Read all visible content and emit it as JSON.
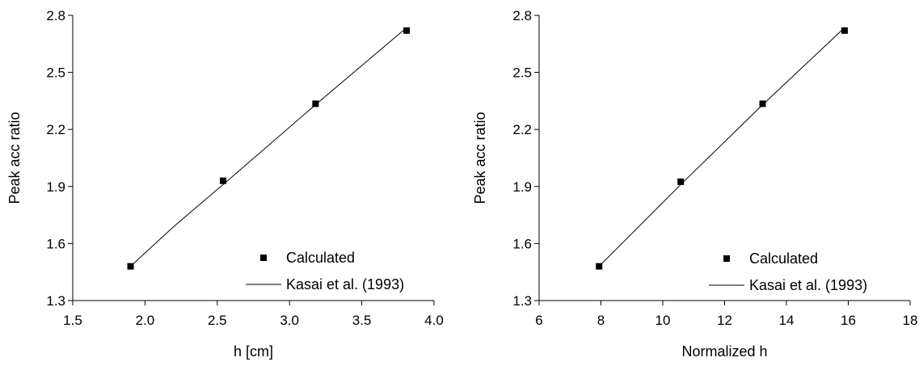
{
  "chart_data": [
    {
      "type": "scatter",
      "xlabel": "h [cm]",
      "ylabel": "Peak acc ratio",
      "xlim": [
        1.5,
        4.0
      ],
      "ylim": [
        1.3,
        2.8
      ],
      "xticks": [
        1.5,
        2.0,
        2.5,
        3.0,
        3.5,
        4.0
      ],
      "xtick_labels": [
        "1.5",
        "2.0",
        "2.5",
        "3.0",
        "3.5",
        "4.0"
      ],
      "yticks": [
        1.3,
        1.6,
        1.9,
        2.2,
        2.5,
        2.8
      ],
      "ytick_labels": [
        "1.3",
        "1.6",
        "1.9",
        "2.2",
        "2.5",
        "2.8"
      ],
      "grid": false,
      "legend_position": "bottom-right",
      "series": [
        {
          "name": "Calculated",
          "kind": "markers",
          "marker": "square",
          "x": [
            1.9,
            2.54,
            3.18,
            3.81
          ],
          "y": [
            1.48,
            1.93,
            2.335,
            2.72
          ]
        },
        {
          "name": "Kasai et al. (1993)",
          "kind": "line",
          "x": [
            1.9,
            2.2,
            2.54,
            3.18,
            3.81
          ],
          "y": [
            1.48,
            1.69,
            1.91,
            2.33,
            2.735
          ]
        }
      ]
    },
    {
      "type": "scatter",
      "xlabel": "Normalized h",
      "ylabel": "Peak acc ratio",
      "xlim": [
        6,
        18
      ],
      "ylim": [
        1.3,
        2.8
      ],
      "xticks": [
        6,
        8,
        10,
        12,
        14,
        16,
        18
      ],
      "xtick_labels": [
        "6",
        "8",
        "10",
        "12",
        "14",
        "16",
        "18"
      ],
      "yticks": [
        1.3,
        1.6,
        1.9,
        2.2,
        2.5,
        2.8
      ],
      "ytick_labels": [
        "1.3",
        "1.6",
        "1.9",
        "2.2",
        "2.5",
        "2.8"
      ],
      "grid": false,
      "legend_position": "bottom-right",
      "series": [
        {
          "name": "Calculated",
          "kind": "markers",
          "marker": "square",
          "x": [
            7.94,
            10.58,
            13.23,
            15.88
          ],
          "y": [
            1.48,
            1.925,
            2.335,
            2.72
          ]
        },
        {
          "name": "Kasai et al. (1993)",
          "kind": "line",
          "x": [
            7.94,
            10.58,
            13.23,
            15.88
          ],
          "y": [
            1.48,
            1.91,
            2.33,
            2.735
          ]
        }
      ]
    }
  ]
}
